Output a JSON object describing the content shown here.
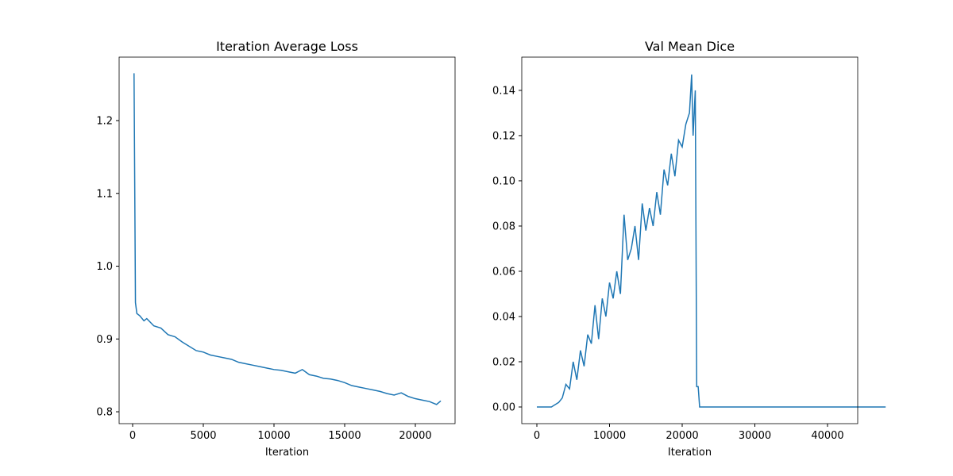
{
  "chart_data": [
    {
      "type": "line",
      "title": "Iteration Average Loss",
      "xlabel": "Iteration",
      "color": "#1f77b4",
      "x": [
        100,
        200,
        300,
        500,
        800,
        1000,
        1500,
        2000,
        2500,
        3000,
        3500,
        4000,
        4500,
        5000,
        5500,
        6000,
        6500,
        7000,
        7500,
        8000,
        8500,
        9000,
        9500,
        10000,
        10500,
        11000,
        11500,
        12000,
        12500,
        13000,
        13500,
        14000,
        14500,
        15000,
        15500,
        16000,
        16500,
        17000,
        17500,
        18000,
        18500,
        19000,
        19500,
        20000,
        20500,
        21000,
        21500,
        21800
      ],
      "values": [
        1.265,
        0.95,
        0.935,
        0.932,
        0.925,
        0.928,
        0.918,
        0.915,
        0.906,
        0.903,
        0.896,
        0.89,
        0.884,
        0.882,
        0.878,
        0.876,
        0.874,
        0.872,
        0.868,
        0.866,
        0.864,
        0.862,
        0.86,
        0.858,
        0.857,
        0.855,
        0.853,
        0.858,
        0.851,
        0.849,
        0.846,
        0.845,
        0.843,
        0.84,
        0.836,
        0.834,
        0.832,
        0.83,
        0.828,
        0.825,
        0.823,
        0.826,
        0.821,
        0.818,
        0.816,
        0.814,
        0.81,
        0.815
      ],
      "xlim": [
        -955,
        22809
      ],
      "xticks": [
        0,
        5000,
        10000,
        15000,
        20000
      ],
      "ylim": [
        0.7837,
        1.2872
      ],
      "yticks": [
        0.8,
        0.9,
        {
          "value": 1,
          "label": "1.0"
        },
        1.1,
        1.2
      ]
    },
    {
      "type": "line",
      "title": "Val Mean Dice",
      "xlabel": "Iteration",
      "color": "#1f77b4",
      "x": [
        0,
        500,
        1000,
        1500,
        2000,
        2500,
        3000,
        3500,
        4000,
        4500,
        5000,
        5500,
        6000,
        6500,
        7000,
        7500,
        8000,
        8500,
        9000,
        9500,
        10000,
        10500,
        11000,
        11500,
        12000,
        12500,
        13000,
        13500,
        14000,
        14500,
        15000,
        15500,
        16000,
        16500,
        17000,
        17500,
        18000,
        18500,
        19000,
        19500,
        20000,
        20500,
        21000,
        21300,
        21500,
        21800,
        22000,
        22200,
        22400,
        30000,
        40000,
        48000
      ],
      "values": [
        0,
        0,
        0,
        0,
        0,
        0.001,
        0.002,
        0.004,
        0.01,
        0.008,
        0.02,
        0.012,
        0.025,
        0.018,
        0.032,
        0.028,
        0.045,
        0.03,
        0.048,
        0.04,
        0.055,
        0.048,
        0.06,
        0.05,
        0.085,
        0.065,
        0.07,
        0.08,
        0.065,
        0.09,
        0.078,
        0.088,
        0.08,
        0.095,
        0.085,
        0.105,
        0.098,
        0.112,
        0.102,
        0.118,
        0.115,
        0.125,
        0.13,
        0.147,
        0.12,
        0.14,
        0.009,
        0.009,
        0,
        0,
        0,
        0
      ],
      "xlim": [
        -2077,
        44153
      ],
      "xticks": [
        0,
        10000,
        20000,
        30000,
        40000,
        50000
      ],
      "ylim": [
        -0.00737,
        0.1547
      ],
      "yticks": [
        {
          "value": 0,
          "label": "0.00"
        },
        0.02,
        0.04,
        0.06,
        0.08,
        {
          "value": 0.1,
          "label": "0.10"
        },
        0.12,
        0.14
      ]
    }
  ]
}
